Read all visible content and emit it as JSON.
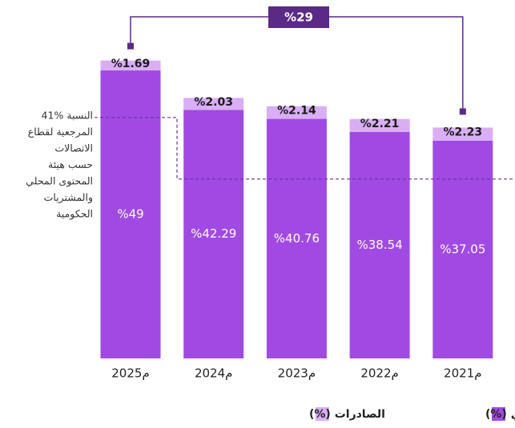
{
  "chart_data": {
    "type": "stacked_bar",
    "categories": [
      "2025م",
      "2024م",
      "2023م",
      "2022م",
      "2021م"
    ],
    "series": [
      {
        "name": "المحتوى المحلي (%)",
        "color": "#a04ae3",
        "values": [
          49,
          42.29,
          40.76,
          38.54,
          37.05
        ],
        "value_labels": [
          "%49",
          "%42.29",
          "%40.76",
          "%38.54",
          "%37.05"
        ]
      },
      {
        "name": "الصادرات (%)",
        "color": "#d9aef5",
        "values": [
          1.69,
          2.03,
          2.14,
          2.21,
          2.23
        ],
        "value_labels": [
          "%1.69",
          "%2.03",
          "%2.14",
          "%2.21",
          "%2.23"
        ]
      }
    ],
    "ylim": [
      0,
      52
    ],
    "reference_line": {
      "value": 41,
      "label_lines": [
        "41% النسبة",
        "المرجعية لقطاع",
        "الاتصالات",
        "حسب هيئة",
        "المحتوى المحلي",
        "والمشتريات",
        "الحكومية"
      ]
    },
    "growth": {
      "value": 29,
      "label": "%29"
    }
  }
}
